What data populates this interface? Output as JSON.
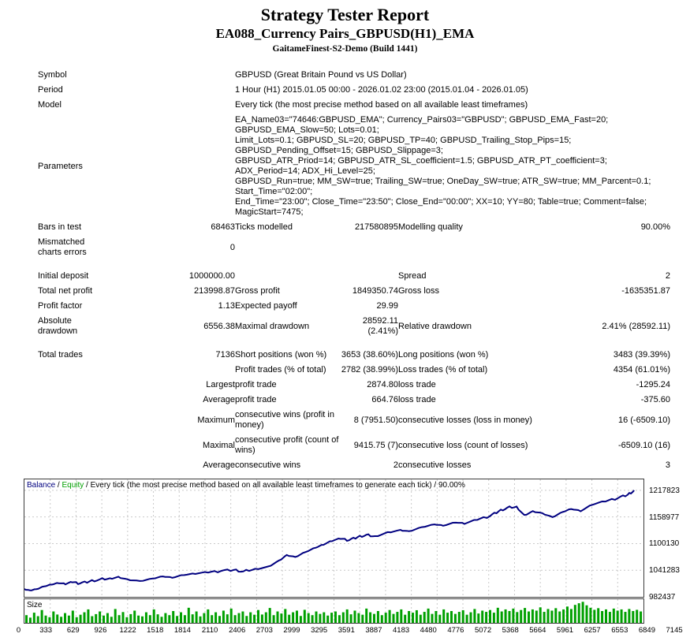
{
  "header": {
    "title": "Strategy Tester Report",
    "subtitle": "EA088_Currency Pairs_GBPUSD(H1)_EMA",
    "build": "GaitameFinest-S2-Demo (Build 1441)"
  },
  "report": {
    "rows": [
      {
        "wide": true,
        "cells": [
          "Symbol",
          "",
          "GBPUSD (Great Britain Pound vs US Dollar)"
        ]
      },
      {
        "wide": true,
        "cells": [
          "Period",
          "",
          "1 Hour (H1) 2015.01.05 00:00 - 2026.01.02 23:00 (2015.01.04 - 2026.01.05)"
        ]
      },
      {
        "wide": true,
        "cells": [
          "Model",
          "",
          "Every tick (the most precise method based on all available least timeframes)"
        ]
      },
      {
        "wide": true,
        "cells": [
          "Parameters",
          "",
          "EA_Name03=\"74646:GBPUSD_EMA\"; Currency_Pairs03=\"GBPUSD\"; GBPUSD_EMA_Fast=20; GBPUSD_EMA_Slow=50; Lots=0.01;\nLimit_Lots=0.1; GBPUSD_SL=20; GBPUSD_TP=40; GBPUSD_Trailing_Stop_Pips=15; GBPUSD_Pending_Offset=15; GBPUSD_Slippage=3;\nGBPUSD_ATR_Priod=14; GBPUSD_ATR_SL_coefficient=1.5; GBPUSD_ATR_PT_coefficient=3; ADX_Period=14; ADX_Hi_Level=25;\nGBPUSD_Run=true; MM_SW=true; Trailing_SW=true; OneDay_SW=true; ATR_SW=true; MM_Parcent=0.1; Start_Time=\"02:00\";\nEnd_Time=\"23:00\"; Close_Time=\"23:50\"; Close_End=\"00:00\"; XX=10; YY=80; Table=true; Comment=false; MagicStart=7475;"
        ]
      },
      {
        "cells": [
          "Bars in test",
          "68463",
          "Ticks modelled",
          "217580895",
          "Modelling quality",
          "90.00%"
        ]
      },
      {
        "cells": [
          "Mismatched charts errors",
          "0",
          "",
          "",
          "",
          ""
        ]
      },
      {
        "spacer": true
      },
      {
        "cells": [
          "Initial deposit",
          "1000000.00",
          "",
          "",
          "Spread",
          "2"
        ]
      },
      {
        "cells": [
          "Total net profit",
          "213998.87",
          "Gross profit",
          "1849350.74",
          "Gross loss",
          "-1635351.87"
        ]
      },
      {
        "cells": [
          "Profit factor",
          "1.13",
          "Expected payoff",
          "29.99",
          "",
          ""
        ]
      },
      {
        "cells": [
          "Absolute drawdown",
          "6556.38",
          "Maximal drawdown",
          "28592.11 (2.41%)",
          "Relative drawdown",
          "2.41% (28592.11)"
        ]
      },
      {
        "spacer": true
      },
      {
        "cells": [
          "Total trades",
          "7136",
          "Short positions (won %)",
          "3653 (38.60%)",
          "Long positions (won %)",
          "3483 (39.39%)"
        ]
      },
      {
        "cells": [
          "",
          "",
          "Profit trades (% of total)",
          "2782 (38.99%)",
          "Loss trades (% of total)",
          "4354 (61.01%)"
        ]
      },
      {
        "cells": [
          "",
          "Largest",
          "profit trade",
          "2874.80",
          "loss trade",
          "-1295.24"
        ]
      },
      {
        "cells": [
          "",
          "Average",
          "profit trade",
          "664.76",
          "loss trade",
          "-375.60"
        ]
      },
      {
        "cells": [
          "",
          "Maximum",
          "consecutive wins (profit in money)",
          "8 (7951.50)",
          "consecutive losses (loss in money)",
          "16 (-6509.10)"
        ]
      },
      {
        "cells": [
          "",
          "Maximal",
          "consecutive profit (count of wins)",
          "9415.75 (7)",
          "consecutive loss (count of losses)",
          "-6509.10 (16)"
        ]
      },
      {
        "cells": [
          "",
          "Average",
          "consecutive wins",
          "2",
          "consecutive losses",
          "3"
        ]
      }
    ]
  },
  "chart_data": {
    "type": "line",
    "legend": {
      "balance": "Balance",
      "equity": "Equity",
      "separator": " / ",
      "suffix": "Every tick (the most precise method based on all available least timeframes to generate each tick) / 90.00%"
    },
    "y_ticks": [
      1217823,
      1158977,
      1100130,
      1041283,
      982437
    ],
    "ylim": [
      982437,
      1242054
    ],
    "x_ticks": [
      0,
      333,
      629,
      926,
      1222,
      1518,
      1814,
      2110,
      2406,
      2703,
      2999,
      3295,
      3591,
      3887,
      4183,
      4480,
      4776,
      5072,
      5368,
      5664,
      5961,
      6257,
      6553,
      6849,
      7145
    ],
    "xlim": [
      0,
      7245
    ],
    "grid": true,
    "legend_position": "top-left",
    "balance_series": [
      [
        0,
        1000000
      ],
      [
        60,
        997000
      ],
      [
        140,
        999500
      ],
      [
        230,
        1005500
      ],
      [
        320,
        1009500
      ],
      [
        400,
        1012500
      ],
      [
        480,
        1010000
      ],
      [
        560,
        1014500
      ],
      [
        650,
        1012000
      ],
      [
        760,
        1016500
      ],
      [
        880,
        1021000
      ],
      [
        1000,
        1023500
      ],
      [
        1100,
        1027000
      ],
      [
        1200,
        1021500
      ],
      [
        1350,
        1017500
      ],
      [
        1500,
        1023000
      ],
      [
        1620,
        1027500
      ],
      [
        1730,
        1024500
      ],
      [
        1870,
        1030500
      ],
      [
        2000,
        1033000
      ],
      [
        2150,
        1036000
      ],
      [
        2300,
        1039500
      ],
      [
        2450,
        1042000
      ],
      [
        2560,
        1038500
      ],
      [
        2700,
        1044500
      ],
      [
        2850,
        1049500
      ],
      [
        2980,
        1063000
      ],
      [
        3070,
        1075000
      ],
      [
        3170,
        1070500
      ],
      [
        3290,
        1081500
      ],
      [
        3410,
        1091000
      ],
      [
        3500,
        1097500
      ],
      [
        3600,
        1105500
      ],
      [
        3700,
        1110500
      ],
      [
        3800,
        1107500
      ],
      [
        3900,
        1114500
      ],
      [
        4000,
        1119500
      ],
      [
        4100,
        1116500
      ],
      [
        4250,
        1125500
      ],
      [
        4400,
        1130500
      ],
      [
        4500,
        1127500
      ],
      [
        4650,
        1136500
      ],
      [
        4800,
        1142500
      ],
      [
        4900,
        1139500
      ],
      [
        5050,
        1146500
      ],
      [
        5150,
        1143500
      ],
      [
        5300,
        1152500
      ],
      [
        5450,
        1161000
      ],
      [
        5550,
        1171500
      ],
      [
        5650,
        1179500
      ],
      [
        5760,
        1182000
      ],
      [
        5850,
        1163500
      ],
      [
        5950,
        1172000
      ],
      [
        6060,
        1167500
      ],
      [
        6180,
        1158500
      ],
      [
        6300,
        1170000
      ],
      [
        6400,
        1176500
      ],
      [
        6510,
        1171500
      ],
      [
        6650,
        1186000
      ],
      [
        6800,
        1193000
      ],
      [
        6950,
        1201000
      ],
      [
        7060,
        1208000
      ],
      [
        7136,
        1217823
      ]
    ],
    "size_panel": {
      "label": "Size",
      "bar_heights": [
        0.3,
        0.18,
        0.42,
        0.25,
        0.55,
        0.28,
        0.2,
        0.48,
        0.33,
        0.22,
        0.4,
        0.28,
        0.52,
        0.2,
        0.32,
        0.44,
        0.58,
        0.25,
        0.35,
        0.48,
        0.28,
        0.4,
        0.22,
        0.6,
        0.3,
        0.45,
        0.2,
        0.35,
        0.52,
        0.28,
        0.24,
        0.44,
        0.3,
        0.58,
        0.34,
        0.22,
        0.4,
        0.3,
        0.5,
        0.26,
        0.44,
        0.3,
        0.66,
        0.34,
        0.48,
        0.24,
        0.4,
        0.58,
        0.3,
        0.44,
        0.26,
        0.52,
        0.34,
        0.62,
        0.3,
        0.4,
        0.48,
        0.26,
        0.44,
        0.32,
        0.55,
        0.33,
        0.44,
        0.65,
        0.3,
        0.48,
        0.38,
        0.6,
        0.32,
        0.44,
        0.52,
        0.26,
        0.56,
        0.4,
        0.3,
        0.48,
        0.36,
        0.44,
        0.28,
        0.42,
        0.48,
        0.3,
        0.44,
        0.58,
        0.34,
        0.52,
        0.4,
        0.32,
        0.62,
        0.44,
        0.36,
        0.5,
        0.3,
        0.42,
        0.55,
        0.36,
        0.46,
        0.58,
        0.32,
        0.5,
        0.42,
        0.54,
        0.32,
        0.46,
        0.62,
        0.36,
        0.5,
        0.32,
        0.58,
        0.42,
        0.5,
        0.36,
        0.46,
        0.54,
        0.32,
        0.44,
        0.6,
        0.38,
        0.52,
        0.46,
        0.55,
        0.42,
        0.66,
        0.48,
        0.58,
        0.5,
        0.62,
        0.45,
        0.55,
        0.65,
        0.48,
        0.58,
        0.52,
        0.68,
        0.46,
        0.6,
        0.52,
        0.64,
        0.48,
        0.58,
        0.72,
        0.6,
        0.8,
        0.88,
        0.95,
        0.78,
        0.66,
        0.56,
        0.64,
        0.5,
        0.58,
        0.46,
        0.62,
        0.52,
        0.58,
        0.46,
        0.6,
        0.5,
        0.56,
        0.48
      ]
    },
    "colors": {
      "balance_line": "#000080",
      "equity_label": "#00A000",
      "size_bars": "#00A000",
      "grid": "#c9c9c9",
      "frame": "#3c3c3c"
    }
  }
}
